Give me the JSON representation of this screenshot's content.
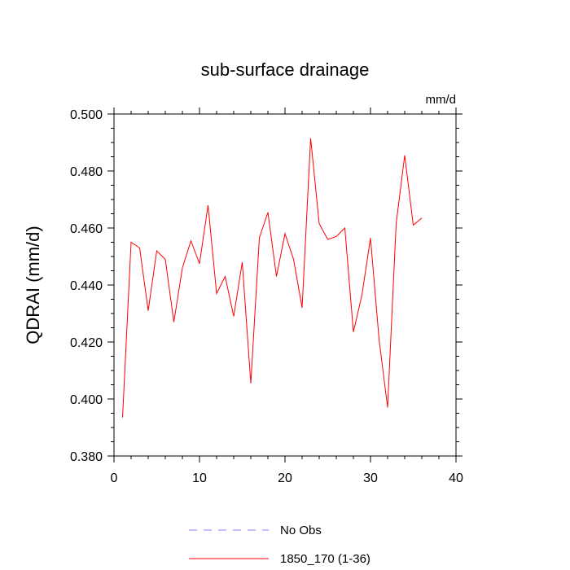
{
  "chart_data": {
    "type": "line",
    "title": "sub-surface drainage",
    "units_label": "mm/d",
    "ylabel": "QDRAI  (mm/d)",
    "xlabel": "",
    "xlim": [
      0,
      40
    ],
    "ylim": [
      0.38,
      0.5
    ],
    "x_ticks": [
      0,
      10,
      20,
      30,
      40
    ],
    "x_tick_labels": [
      "0",
      "10",
      "20",
      "30",
      "40"
    ],
    "y_ticks": [
      0.38,
      0.4,
      0.42,
      0.44,
      0.46,
      0.48,
      0.5
    ],
    "y_tick_labels": [
      "0.380",
      "0.400",
      "0.420",
      "0.440",
      "0.460",
      "0.480",
      "0.500"
    ],
    "grid": false,
    "legend_position": "bottom-center",
    "legend": [
      {
        "label": "No Obs",
        "color": "#8080ff",
        "style": "dashed"
      },
      {
        "label": "1850_170 (1-36)",
        "color": "#ff0000",
        "style": "solid"
      }
    ],
    "series": [
      {
        "name": "1850_170 (1-36)",
        "color": "#ff0000",
        "x": [
          1,
          2,
          3,
          4,
          5,
          6,
          7,
          8,
          9,
          10,
          11,
          12,
          13,
          14,
          15,
          16,
          17,
          18,
          19,
          20,
          21,
          22,
          23,
          24,
          25,
          26,
          27,
          28,
          29,
          30,
          31,
          32,
          33,
          34,
          35,
          36
        ],
        "values": [
          0.3935,
          0.455,
          0.453,
          0.431,
          0.452,
          0.449,
          0.427,
          0.446,
          0.4555,
          0.4475,
          0.468,
          0.437,
          0.443,
          0.429,
          0.448,
          0.4055,
          0.4565,
          0.4655,
          0.443,
          0.458,
          0.449,
          0.432,
          0.4915,
          0.4615,
          0.456,
          0.457,
          0.46,
          0.4235,
          0.4365,
          0.4565,
          0.421,
          0.397,
          0.4615,
          0.4855,
          0.461,
          0.4635
        ]
      }
    ]
  }
}
